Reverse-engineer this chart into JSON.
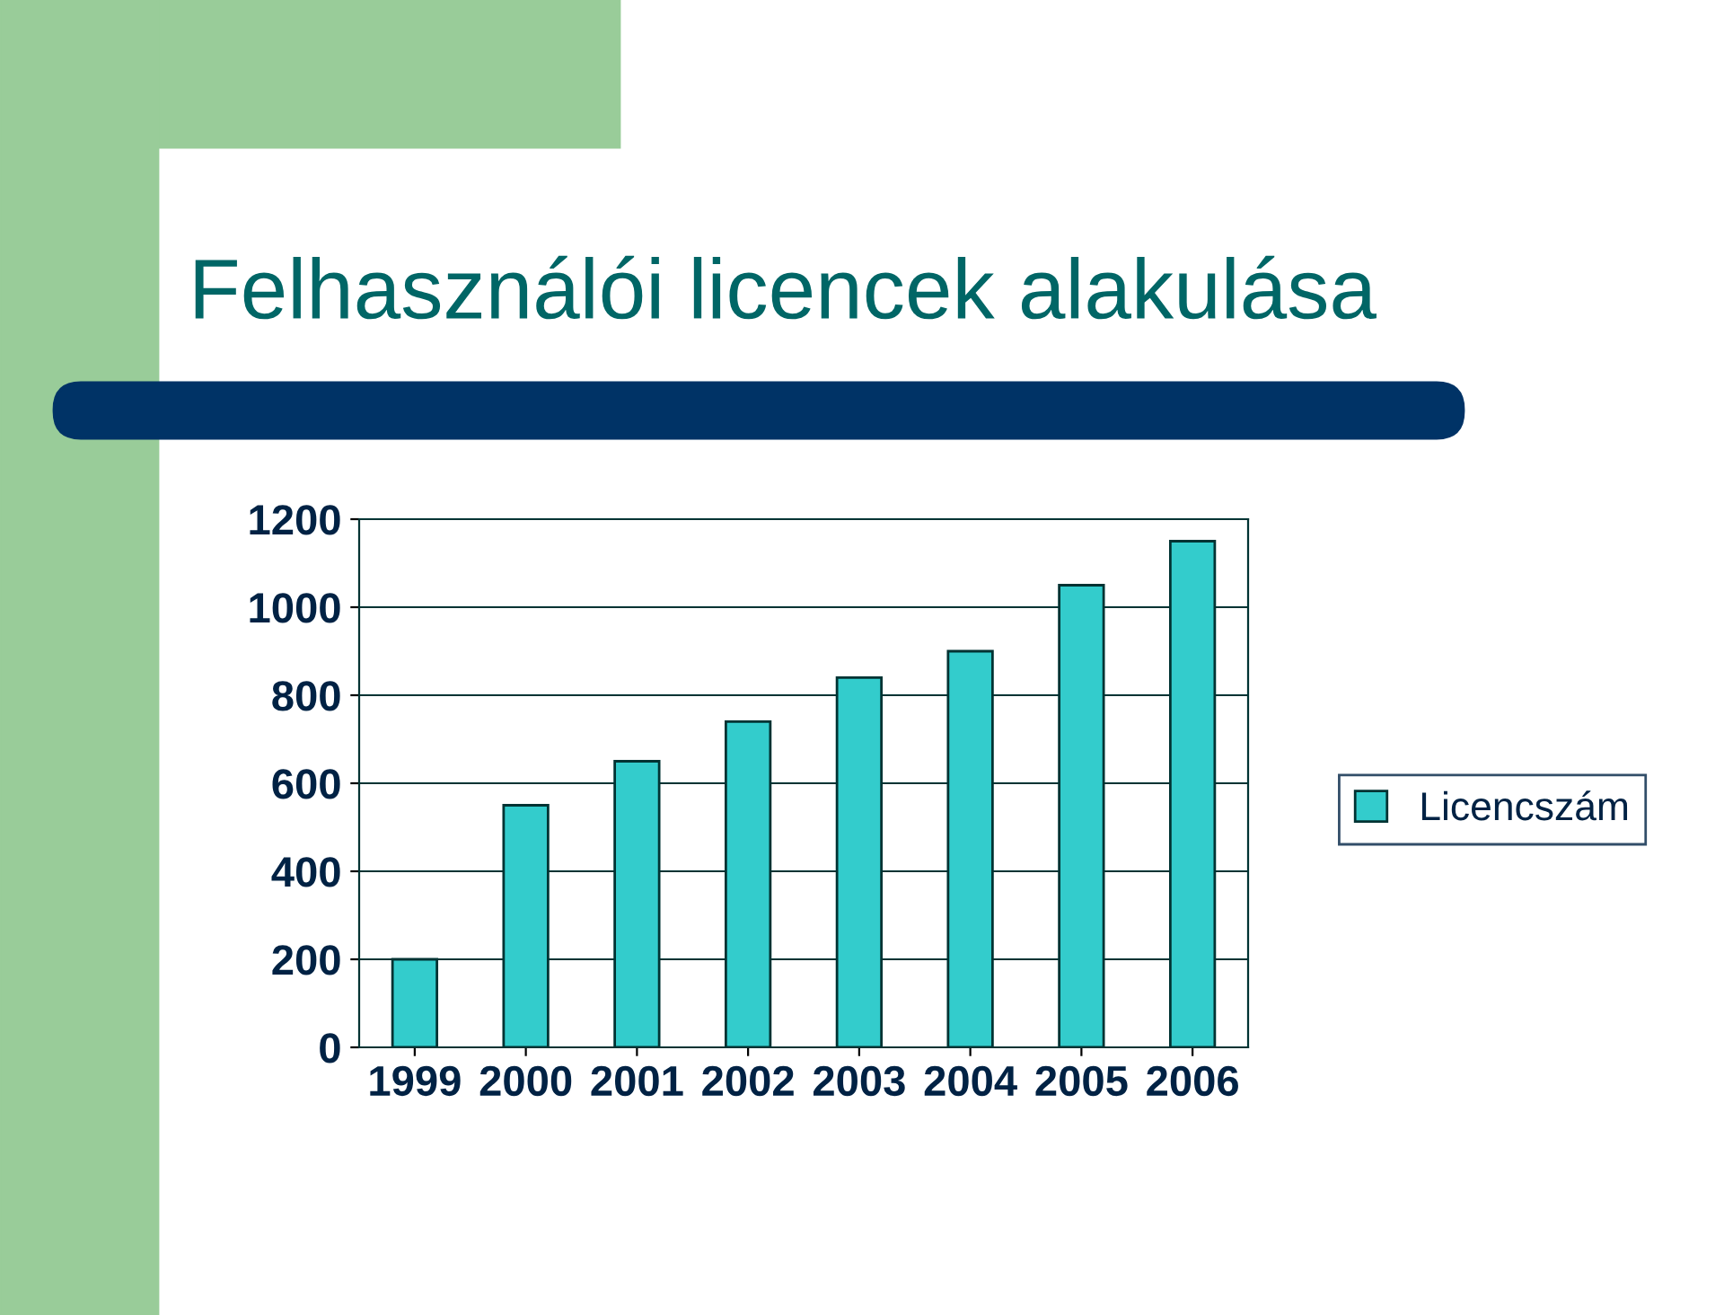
{
  "chart_data": {
    "type": "bar",
    "title": "Felhasználói licencek alakulása",
    "categories": [
      "1999",
      "2000",
      "2001",
      "2002",
      "2003",
      "2004",
      "2005",
      "2006"
    ],
    "series": [
      {
        "name": "Licencszám",
        "color": "#33cccc",
        "values": [
          200,
          550,
          650,
          740,
          840,
          900,
          1050,
          1150
        ]
      }
    ],
    "ylim": [
      0,
      1200
    ],
    "yticks": [
      0,
      200,
      400,
      600,
      800,
      1000,
      1200
    ],
    "grid": "y",
    "legend": "right"
  }
}
